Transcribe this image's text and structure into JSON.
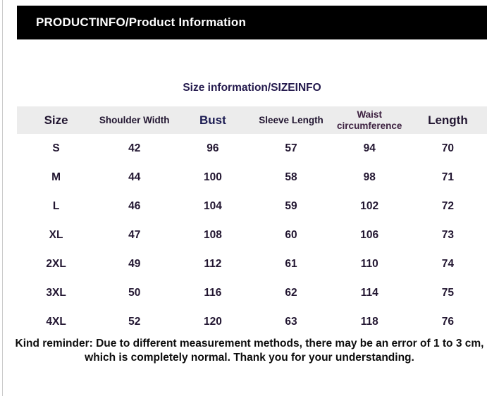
{
  "header": {
    "title": "PRODUCTINFO/Product Information"
  },
  "section": {
    "title": "Size information/SIZEINFO"
  },
  "table": {
    "columns": [
      {
        "label": "Size",
        "emphasis": "large"
      },
      {
        "label": "Shoulder Width",
        "emphasis": "small"
      },
      {
        "label": "Bust",
        "emphasis": "large",
        "color": "#1b1b52"
      },
      {
        "label": "Sleeve Length",
        "emphasis": "small"
      },
      {
        "label": "Waist circumference",
        "emphasis": "small",
        "color": "#3d2140"
      },
      {
        "label": "Length",
        "emphasis": "large"
      }
    ],
    "rows": [
      [
        "S",
        "42",
        "96",
        "57",
        "94",
        "70"
      ],
      [
        "M",
        "44",
        "100",
        "58",
        "98",
        "71"
      ],
      [
        "L",
        "46",
        "104",
        "59",
        "102",
        "72"
      ],
      [
        "XL",
        "47",
        "108",
        "60",
        "106",
        "73"
      ],
      [
        "2XL",
        "49",
        "112",
        "61",
        "110",
        "74"
      ],
      [
        "3XL",
        "50",
        "116",
        "62",
        "114",
        "75"
      ],
      [
        "4XL",
        "52",
        "120",
        "63",
        "118",
        "76"
      ]
    ]
  },
  "footer": {
    "note": "Kind reminder: Due to different measurement methods, there may be an error of 1 to 3 cm, which is completely normal. Thank you for your understanding."
  },
  "colors": {
    "topbar_bg": "#000000",
    "topbar_text": "#ffffff",
    "title_text": "#241a4d",
    "table_header_bg": "#ececec",
    "table_text": "#221631",
    "footer_text": "#0d0d0d"
  }
}
